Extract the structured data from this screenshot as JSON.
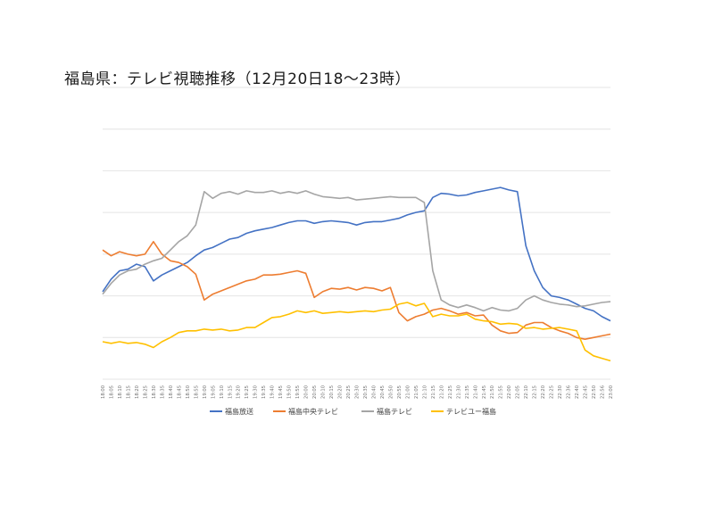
{
  "chart_data": {
    "type": "line",
    "title": "福島県：テレビ視聴推移（12月20日18〜23時）",
    "xlabel": "",
    "ylabel": "",
    "y_axis_labels_visible": false,
    "grid": "horizontal",
    "legend_position": "bottom",
    "x_ticks": [
      "18:00",
      "18:05",
      "18:10",
      "18:15",
      "18:20",
      "18:25",
      "18:30",
      "18:35",
      "18:40",
      "18:45",
      "18:50",
      "18:55",
      "19:00",
      "19:05",
      "19:10",
      "19:15",
      "19:20",
      "19:25",
      "19:30",
      "19:35",
      "19:40",
      "19:45",
      "19:50",
      "19:55",
      "20:00",
      "20:05",
      "20:10",
      "20:15",
      "20:20",
      "20:25",
      "20:30",
      "20:35",
      "20:40",
      "20:45",
      "20:50",
      "20:55",
      "21:00",
      "21:05",
      "21:10",
      "21:15",
      "21:20",
      "21:25",
      "21:30",
      "21:35",
      "21:40",
      "21:45",
      "21:50",
      "21:55",
      "22:00",
      "22:05",
      "22:10",
      "22:15",
      "22:20",
      "22:25",
      "22:30",
      "22:36",
      "22:40",
      "22:45",
      "22:50",
      "22:56",
      "23:00"
    ],
    "x_domain_minutes": [
      0,
      300
    ],
    "series": [
      {
        "name": "福島放送",
        "color": "#4472C4",
        "points": [
          [
            0,
            10.5
          ],
          [
            5,
            12
          ],
          [
            10,
            13
          ],
          [
            15,
            13.2
          ],
          [
            20,
            13.8
          ],
          [
            25,
            13.5
          ],
          [
            30,
            11.8
          ],
          [
            35,
            12.5
          ],
          [
            40,
            13
          ],
          [
            45,
            13.5
          ],
          [
            50,
            14
          ],
          [
            55,
            14.8
          ],
          [
            60,
            15.5
          ],
          [
            65,
            15.8
          ],
          [
            70,
            16.3
          ],
          [
            75,
            16.8
          ],
          [
            80,
            17
          ],
          [
            85,
            17.5
          ],
          [
            90,
            17.8
          ],
          [
            95,
            18
          ],
          [
            100,
            18.2
          ],
          [
            105,
            18.5
          ],
          [
            110,
            18.8
          ],
          [
            115,
            19
          ],
          [
            120,
            19
          ],
          [
            125,
            18.7
          ],
          [
            130,
            18.9
          ],
          [
            135,
            19
          ],
          [
            140,
            18.9
          ],
          [
            145,
            18.8
          ],
          [
            150,
            18.5
          ],
          [
            155,
            18.8
          ],
          [
            160,
            18.9
          ],
          [
            165,
            18.9
          ],
          [
            170,
            19.1
          ],
          [
            175,
            19.3
          ],
          [
            180,
            19.7
          ],
          [
            185,
            20
          ],
          [
            190,
            20.2
          ],
          [
            195,
            21.8
          ],
          [
            200,
            22.3
          ],
          [
            205,
            22.2
          ],
          [
            210,
            22
          ],
          [
            215,
            22.1
          ],
          [
            220,
            22.4
          ],
          [
            225,
            22.6
          ],
          [
            230,
            22.8
          ],
          [
            235,
            23
          ],
          [
            240,
            22.7
          ],
          [
            245,
            22.5
          ],
          [
            250,
            16
          ],
          [
            255,
            13
          ],
          [
            260,
            11
          ],
          [
            265,
            10
          ],
          [
            270,
            9.8
          ],
          [
            275,
            9.5
          ],
          [
            280,
            9
          ],
          [
            285,
            8.5
          ],
          [
            290,
            8.2
          ],
          [
            295,
            7.5
          ],
          [
            300,
            7
          ]
        ]
      },
      {
        "name": "福島中央テレビ",
        "color": "#ED7D31",
        "points": [
          [
            0,
            15.5
          ],
          [
            5,
            14.8
          ],
          [
            10,
            15.3
          ],
          [
            15,
            15
          ],
          [
            20,
            14.8
          ],
          [
            25,
            15
          ],
          [
            30,
            16.5
          ],
          [
            35,
            15
          ],
          [
            40,
            14.2
          ],
          [
            45,
            14
          ],
          [
            50,
            13.5
          ],
          [
            55,
            12.6
          ],
          [
            60,
            9.5
          ],
          [
            65,
            10.2
          ],
          [
            70,
            10.6
          ],
          [
            75,
            11
          ],
          [
            80,
            11.4
          ],
          [
            85,
            11.8
          ],
          [
            90,
            12
          ],
          [
            95,
            12.5
          ],
          [
            100,
            12.5
          ],
          [
            105,
            12.6
          ],
          [
            110,
            12.8
          ],
          [
            115,
            13
          ],
          [
            120,
            12.7
          ],
          [
            125,
            9.8
          ],
          [
            130,
            10.5
          ],
          [
            135,
            10.9
          ],
          [
            140,
            10.8
          ],
          [
            145,
            11
          ],
          [
            150,
            10.7
          ],
          [
            155,
            11
          ],
          [
            160,
            10.9
          ],
          [
            165,
            10.6
          ],
          [
            170,
            11
          ],
          [
            175,
            8
          ],
          [
            180,
            7
          ],
          [
            185,
            7.5
          ],
          [
            190,
            7.8
          ],
          [
            195,
            8.3
          ],
          [
            200,
            8.5
          ],
          [
            205,
            8.2
          ],
          [
            210,
            7.8
          ],
          [
            215,
            8
          ],
          [
            220,
            7.6
          ],
          [
            225,
            7.7
          ],
          [
            230,
            6.5
          ],
          [
            235,
            5.8
          ],
          [
            240,
            5.5
          ],
          [
            245,
            5.6
          ],
          [
            250,
            6.5
          ],
          [
            255,
            6.8
          ],
          [
            260,
            6.8
          ],
          [
            265,
            6.2
          ],
          [
            270,
            5.8
          ],
          [
            275,
            5.5
          ],
          [
            280,
            5
          ],
          [
            285,
            4.8
          ],
          [
            290,
            5
          ],
          [
            295,
            5.2
          ],
          [
            300,
            5.4
          ]
        ]
      },
      {
        "name": "福島テレビ",
        "color": "#A5A5A5",
        "points": [
          [
            0,
            10.2
          ],
          [
            5,
            11.5
          ],
          [
            10,
            12.5
          ],
          [
            15,
            13
          ],
          [
            20,
            13.2
          ],
          [
            25,
            13.8
          ],
          [
            30,
            14.2
          ],
          [
            35,
            14.5
          ],
          [
            40,
            15.5
          ],
          [
            45,
            16.5
          ],
          [
            50,
            17.2
          ],
          [
            55,
            18.5
          ],
          [
            60,
            22.5
          ],
          [
            65,
            21.7
          ],
          [
            70,
            22.3
          ],
          [
            75,
            22.5
          ],
          [
            80,
            22.2
          ],
          [
            85,
            22.6
          ],
          [
            90,
            22.4
          ],
          [
            95,
            22.4
          ],
          [
            100,
            22.6
          ],
          [
            105,
            22.3
          ],
          [
            110,
            22.5
          ],
          [
            115,
            22.3
          ],
          [
            120,
            22.6
          ],
          [
            125,
            22.2
          ],
          [
            130,
            21.9
          ],
          [
            135,
            21.8
          ],
          [
            140,
            21.7
          ],
          [
            145,
            21.8
          ],
          [
            150,
            21.5
          ],
          [
            155,
            21.6
          ],
          [
            160,
            21.7
          ],
          [
            165,
            21.8
          ],
          [
            170,
            21.9
          ],
          [
            175,
            21.8
          ],
          [
            180,
            21.8
          ],
          [
            185,
            21.8
          ],
          [
            190,
            21.2
          ],
          [
            195,
            13
          ],
          [
            200,
            9.5
          ],
          [
            205,
            8.9
          ],
          [
            210,
            8.6
          ],
          [
            215,
            8.9
          ],
          [
            220,
            8.6
          ],
          [
            225,
            8.2
          ],
          [
            230,
            8.6
          ],
          [
            235,
            8.3
          ],
          [
            240,
            8.2
          ],
          [
            245,
            8.5
          ],
          [
            250,
            9.5
          ],
          [
            255,
            10
          ],
          [
            260,
            9.5
          ],
          [
            265,
            9.2
          ],
          [
            270,
            9
          ],
          [
            275,
            8.9
          ],
          [
            280,
            8.7
          ],
          [
            285,
            8.8
          ],
          [
            290,
            9
          ],
          [
            295,
            9.2
          ],
          [
            300,
            9.3
          ]
        ]
      },
      {
        "name": "テレビユー福島",
        "color": "#FFC000",
        "points": [
          [
            0,
            4.5
          ],
          [
            5,
            4.3
          ],
          [
            10,
            4.5
          ],
          [
            15,
            4.3
          ],
          [
            20,
            4.4
          ],
          [
            25,
            4.2
          ],
          [
            30,
            3.8
          ],
          [
            35,
            4.5
          ],
          [
            40,
            5
          ],
          [
            45,
            5.6
          ],
          [
            50,
            5.8
          ],
          [
            55,
            5.8
          ],
          [
            60,
            6
          ],
          [
            65,
            5.9
          ],
          [
            70,
            6
          ],
          [
            75,
            5.8
          ],
          [
            80,
            5.9
          ],
          [
            85,
            6.2
          ],
          [
            90,
            6.2
          ],
          [
            95,
            6.8
          ],
          [
            100,
            7.4
          ],
          [
            105,
            7.5
          ],
          [
            110,
            7.8
          ],
          [
            115,
            8.2
          ],
          [
            120,
            8
          ],
          [
            125,
            8.2
          ],
          [
            130,
            7.9
          ],
          [
            135,
            8
          ],
          [
            140,
            8.1
          ],
          [
            145,
            8
          ],
          [
            150,
            8.1
          ],
          [
            155,
            8.2
          ],
          [
            160,
            8.1
          ],
          [
            165,
            8.3
          ],
          [
            170,
            8.4
          ],
          [
            175,
            9
          ],
          [
            180,
            9.2
          ],
          [
            185,
            8.8
          ],
          [
            190,
            9.1
          ],
          [
            195,
            7.5
          ],
          [
            200,
            7.8
          ],
          [
            205,
            7.6
          ],
          [
            210,
            7.6
          ],
          [
            215,
            7.8
          ],
          [
            220,
            7.2
          ],
          [
            225,
            7
          ],
          [
            230,
            6.9
          ],
          [
            235,
            6.6
          ],
          [
            240,
            6.7
          ],
          [
            245,
            6.6
          ],
          [
            250,
            6.1
          ],
          [
            255,
            6.2
          ],
          [
            260,
            6
          ],
          [
            265,
            6.1
          ],
          [
            270,
            6.2
          ],
          [
            275,
            6
          ],
          [
            280,
            5.8
          ],
          [
            285,
            3.5
          ],
          [
            290,
            2.8
          ],
          [
            295,
            2.5
          ],
          [
            300,
            2.2
          ]
        ]
      }
    ]
  }
}
